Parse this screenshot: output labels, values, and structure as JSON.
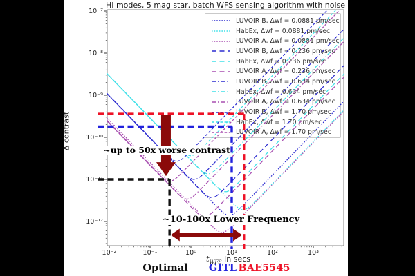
{
  "chart_data": {
    "type": "line",
    "title": "HI modes, 5 mag star, batch WFS sensing algorithm with noise",
    "xlabel": {
      "var": "t",
      "sub": "WFS",
      "rest": " in secs"
    },
    "ylabel": "Δ contrast",
    "x_scale": "log",
    "y_scale": "log",
    "xlim": [
      0.0089,
      5600
    ],
    "ylim": [
      2.8e-13,
      1.1e-07
    ],
    "x_ticks": [
      {
        "label": "10⁻²",
        "value": 0.01
      },
      {
        "label": "10⁻¹",
        "value": 0.1
      },
      {
        "label": "10⁰",
        "value": 1
      },
      {
        "label": "10¹",
        "value": 10
      },
      {
        "label": "10²",
        "value": 100
      },
      {
        "label": "10³",
        "value": 1000
      }
    ],
    "y_ticks": [
      {
        "label": "10⁻⁷",
        "value": 1e-07
      },
      {
        "label": "10⁻⁸",
        "value": 1e-08
      },
      {
        "label": "10⁻⁹",
        "value": 1e-09
      },
      {
        "label": "10⁻¹⁰",
        "value": 1e-10
      },
      {
        "label": "10⁻¹¹",
        "value": 1e-11
      },
      {
        "label": "10⁻¹²",
        "value": 1e-12
      }
    ],
    "legend_position": "upper right",
    "grid": false,
    "series": [
      {
        "label": "LUVOIR B, Δwf = 0.0881 pm/sec",
        "telescope": "LUVOIR B",
        "dwf_pm_per_sec": 0.0881,
        "color": "#2b2bd0",
        "dash": "dotted",
        "t_min_sec": 8.7,
        "contrast_min": 1.4e-12
      },
      {
        "label": "HabEx, Δwf = 0.0881 pm/sec",
        "telescope": "HabEx",
        "dwf_pm_per_sec": 0.0881,
        "color": "#3fe0e8",
        "dash": "dotted",
        "t_min_sec": 19.0,
        "contrast_min": 1.9e-12
      },
      {
        "label": "LUVOIR A, Δwf = 0.0881 pm/sec",
        "telescope": "LUVOIR A",
        "dwf_pm_per_sec": 0.0881,
        "color": "#a84fb0",
        "dash": "dotted",
        "t_min_sec": 5.8,
        "contrast_min": 5.5e-13
      },
      {
        "label": "LUVOIR B, Δwf = 0.236 pm/sec",
        "telescope": "LUVOIR B",
        "dwf_pm_per_sec": 0.236,
        "color": "#2b2bd0",
        "dash": "dashed",
        "t_min_sec": 3.25,
        "contrast_min": 3.7e-12
      },
      {
        "label": "HabEx, Δwf = 0.236 pm/sec",
        "telescope": "HabEx",
        "dwf_pm_per_sec": 0.236,
        "color": "#3fe0e8",
        "dash": "dashed",
        "t_min_sec": 7.1,
        "contrast_min": 5.1e-12
      },
      {
        "label": "LUVOIR A, Δwf = 0.236 pm/sec",
        "telescope": "LUVOIR A",
        "dwf_pm_per_sec": 0.236,
        "color": "#a84fb0",
        "dash": "dashed",
        "t_min_sec": 2.16,
        "contrast_min": 1.3e-12
      },
      {
        "label": "LUVOIR B, Δwf = 0.634 pm/sec",
        "telescope": "LUVOIR B",
        "dwf_pm_per_sec": 0.634,
        "color": "#2b2bd0",
        "dash": "dashdot",
        "t_min_sec": 1.21,
        "contrast_min": 1e-11
      },
      {
        "label": "HabEx, Δwf = 0.634 pm/sec",
        "telescope": "HabEx",
        "dwf_pm_per_sec": 0.634,
        "color": "#3fe0e8",
        "dash": "dashdot",
        "t_min_sec": 2.64,
        "contrast_min": 1.36e-11
      },
      {
        "label": "LUVOIR A, Δwf = 0.634 pm/sec",
        "telescope": "LUVOIR A",
        "dwf_pm_per_sec": 0.634,
        "color": "#a84fb0",
        "dash": "dashdot",
        "t_min_sec": 0.805,
        "contrast_min": 3.4e-12
      },
      {
        "label": "LUVOIR B, Δwf = 1.70 pm/sec",
        "telescope": "LUVOIR B",
        "dwf_pm_per_sec": 1.7,
        "color": "#2b2bd0",
        "dash": "shortdash",
        "t_min_sec": 0.45,
        "contrast_min": 2.7e-11
      },
      {
        "label": "HabEx, Δwf = 1.70 pm/sec",
        "telescope": "HabEx",
        "dwf_pm_per_sec": 1.7,
        "color": "#3fe0e8",
        "dash": "shortdash",
        "t_min_sec": 0.985,
        "contrast_min": 3.65e-11
      },
      {
        "label": "LUVOIR A, Δwf = 1.70 pm/sec",
        "telescope": "LUVOIR A",
        "dwf_pm_per_sec": 1.7,
        "color": "#a84fb0",
        "dash": "shortdash",
        "t_min_sec": 0.3,
        "contrast_min": 9e-12
      }
    ],
    "guides": [
      {
        "name": "optimal",
        "label": "Optimal",
        "color": "#111111",
        "t_sec": 0.3,
        "contrast": 1e-11
      },
      {
        "name": "gitl",
        "label": "GITL",
        "color": "#2222dd",
        "t_sec": 10.0,
        "contrast": 1.8e-10
      },
      {
        "name": "bae5545",
        "label": "BAE5545",
        "color": "#ee1126",
        "t_sec": 20.0,
        "contrast": 3.6e-10
      }
    ],
    "annotations": [
      {
        "text": "~up to 50x worse contrast",
        "arrow": "down",
        "t": 0.245,
        "c_from": 3.4e-10,
        "c_to": 1.2e-11
      },
      {
        "text": "~10-100x Lower Frequency",
        "arrow": "horizontal",
        "c": 4.8e-13,
        "t_from": 0.32,
        "t_to": 18.0
      }
    ],
    "arrow_color": "#8b0a0a",
    "spine_color": "#888888"
  }
}
